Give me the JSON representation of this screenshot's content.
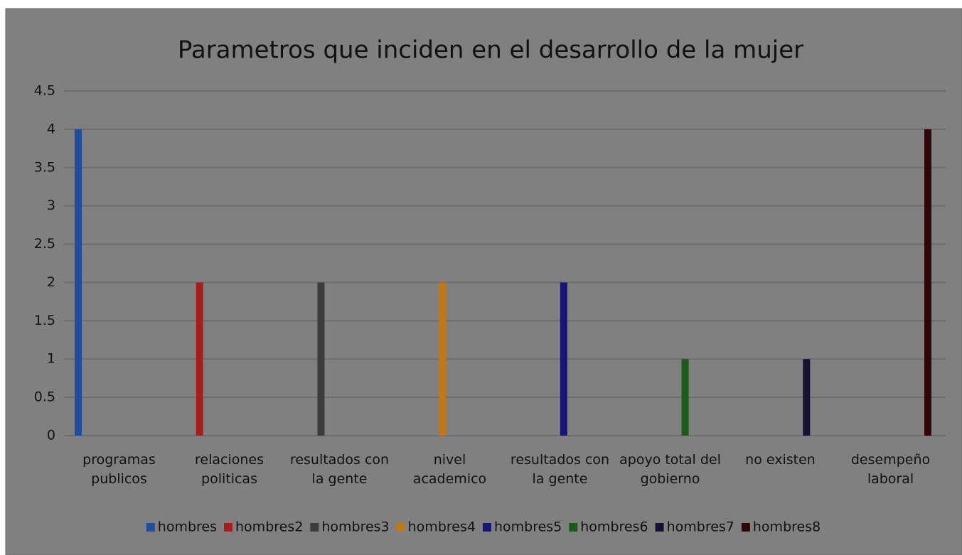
{
  "chart_data": {
    "type": "bar",
    "title": "Parametros que inciden en el desarrollo de la mujer",
    "categories": [
      "programas publicos",
      "relaciones politicas",
      "resultados con la gente",
      "nivel academico",
      "resultados con la gente",
      "apoyo total del gobierno",
      "no existen",
      "desempeño laboral"
    ],
    "series": [
      {
        "name": "hombres",
        "color": "#1f4e9c",
        "values": [
          4,
          null,
          null,
          null,
          null,
          null,
          null,
          null
        ]
      },
      {
        "name": "hombres2",
        "color": "#a81c1c",
        "values": [
          null,
          2,
          null,
          null,
          null,
          null,
          null,
          null
        ]
      },
      {
        "name": "hombres3",
        "color": "#3c3c3c",
        "values": [
          null,
          null,
          2,
          null,
          null,
          null,
          null,
          null
        ]
      },
      {
        "name": "hombres4",
        "color": "#c27812",
        "values": [
          null,
          null,
          null,
          2,
          null,
          null,
          null,
          null
        ]
      },
      {
        "name": "hombres5",
        "color": "#15157a",
        "values": [
          null,
          null,
          null,
          null,
          2,
          null,
          null,
          null
        ]
      },
      {
        "name": "hombres6",
        "color": "#1a5a1a",
        "values": [
          null,
          null,
          null,
          null,
          null,
          1,
          null,
          null
        ]
      },
      {
        "name": "hombres7",
        "color": "#141432",
        "values": [
          null,
          null,
          null,
          null,
          null,
          null,
          1,
          null
        ]
      },
      {
        "name": "hombres8",
        "color": "#2e0808",
        "values": [
          null,
          null,
          null,
          null,
          null,
          null,
          null,
          4
        ]
      }
    ],
    "ylim": [
      0,
      4.5
    ],
    "yticks": [
      0,
      0.5,
      1,
      1.5,
      2,
      2.5,
      3,
      3.5,
      4,
      4.5
    ],
    "grid": true,
    "legend": "bottom"
  }
}
